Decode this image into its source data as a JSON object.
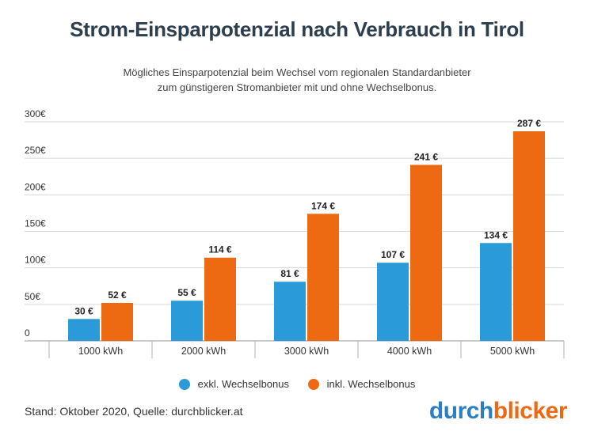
{
  "header": {
    "title": "Strom-Einsparpotenzial nach Verbrauch in Tirol",
    "subtitle_line1": "Mögliches Einsparpotenzial beim Wechsel vom regionalen Standardanbieter",
    "subtitle_line2": "zum günstigeren Stromanbieter mit und ohne Wechselbonus."
  },
  "colors": {
    "series1": "#2b9ad8",
    "series2": "#ee6a12",
    "grid": "#d6d6d6",
    "axis": "#999999"
  },
  "chart_data": {
    "type": "bar",
    "categories": [
      "1000 kWh",
      "2000 kWh",
      "3000 kWh",
      "4000 kWh",
      "5000 kWh"
    ],
    "series": [
      {
        "name": "exkl. Wechselbonus",
        "values": [
          30,
          55,
          81,
          107,
          134
        ],
        "labels": [
          "30 €",
          "55 €",
          "81 €",
          "107 €",
          "134 €"
        ]
      },
      {
        "name": "inkl. Wechselbonus",
        "values": [
          52,
          114,
          174,
          241,
          287
        ],
        "labels": [
          "52 €",
          "114 €",
          "174 €",
          "241 €",
          "287 €"
        ]
      }
    ],
    "yticks": [
      0,
      50,
      100,
      150,
      200,
      250,
      300
    ],
    "ytick_labels": [
      "0",
      "50€",
      "100€",
      "150€",
      "200€",
      "250€",
      "300€"
    ],
    "ylim": [
      0,
      300
    ],
    "legend_position": "bottom-center"
  },
  "footer": {
    "source": "Stand: Oktober 2020, Quelle: durchblicker.at",
    "brand_part1": "durch",
    "brand_part2": "blicker"
  }
}
